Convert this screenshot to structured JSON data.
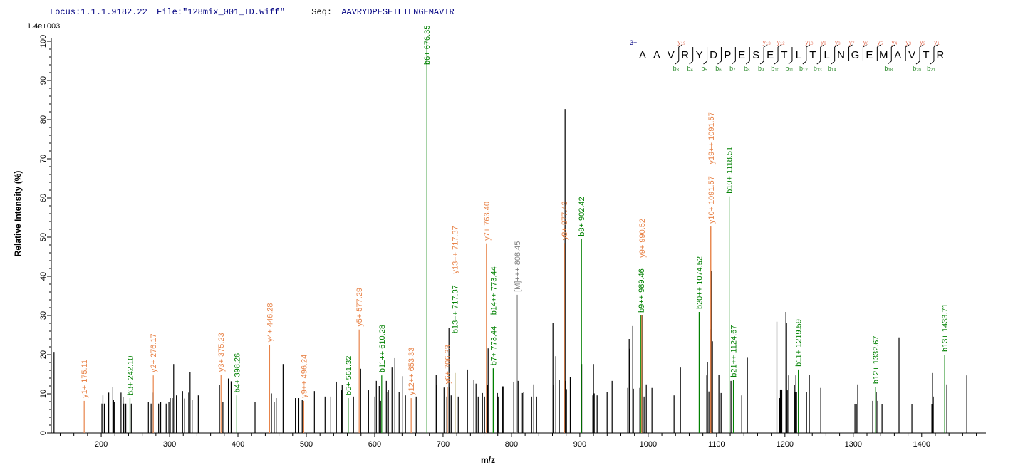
{
  "header": {
    "locus_label": "Locus:",
    "locus": "1.1.1.9182.22",
    "file_label": "File:",
    "file": "\"128mix_001_ID.wiff\"",
    "seq_label": "Seq:",
    "seq": "AAVRYDPESETLTLNGEMAVTR"
  },
  "colors": {
    "y": "#e8844a",
    "b": "#008000",
    "precursor": "#808080",
    "peak": "#000000",
    "header": "#000080"
  },
  "sequence_panel": {
    "charge": "3+",
    "residues": [
      "A",
      "A",
      "V",
      "R",
      "Y",
      "D",
      "P",
      "E",
      "S",
      "E",
      "T",
      "L",
      "T",
      "L",
      "N",
      "G",
      "E",
      "M",
      "A",
      "V",
      "T",
      "R"
    ],
    "b_ions": [
      3,
      4,
      5,
      6,
      7,
      8,
      9,
      10,
      11,
      12,
      13,
      14,
      18,
      20,
      21
    ],
    "y_ions": [
      19,
      13,
      12,
      10,
      9,
      8,
      7,
      6,
      5,
      4,
      3,
      2,
      1
    ]
  },
  "chart_data": {
    "type": "bar",
    "title": "",
    "xlabel": "m/z",
    "ylabel": "Relative   Intensity (%)",
    "y_scale_max_label": "1.4e+003",
    "xlim": [
      127,
      1494
    ],
    "ylim": [
      0,
      100
    ],
    "x_ticks": [
      200,
      300,
      400,
      500,
      600,
      700,
      800,
      900,
      1000,
      1100,
      1200,
      1300,
      1400
    ],
    "y_ticks": [
      0,
      10,
      20,
      30,
      40,
      50,
      60,
      70,
      80,
      90,
      100
    ],
    "grid": false,
    "peaks": [
      [
        131,
        20.7
      ],
      [
        201,
        7.5
      ],
      [
        202.5,
        9.6
      ],
      [
        204.6,
        7.5
      ],
      [
        211,
        10.3
      ],
      [
        217,
        11.8
      ],
      [
        218,
        8.5
      ],
      [
        219,
        7.9
      ],
      [
        229,
        10.3
      ],
      [
        232,
        9.2
      ],
      [
        233,
        7.5
      ],
      [
        236,
        7.5
      ],
      [
        244,
        7.5
      ],
      [
        269,
        7.9
      ],
      [
        273,
        7.5
      ],
      [
        276,
        10.3
      ],
      [
        284,
        7.5
      ],
      [
        287,
        7.9
      ],
      [
        295,
        7.5
      ],
      [
        299,
        7.9
      ],
      [
        301,
        8.9
      ],
      [
        304,
        8.9
      ],
      [
        306,
        17.6
      ],
      [
        310,
        9.6
      ],
      [
        319,
        10.7
      ],
      [
        322,
        8.8
      ],
      [
        328,
        10.3
      ],
      [
        330,
        15.6
      ],
      [
        333,
        8.5
      ],
      [
        342,
        9.6
      ],
      [
        373,
        12.2
      ],
      [
        378,
        7.9
      ],
      [
        386,
        13.9
      ],
      [
        390,
        13.2
      ],
      [
        391,
        10
      ],
      [
        425,
        7.9
      ],
      [
        449,
        10.1
      ],
      [
        453,
        7.9
      ],
      [
        456,
        8.9
      ],
      [
        466,
        17.6
      ],
      [
        484,
        8.9
      ],
      [
        489,
        8.9
      ],
      [
        494,
        8.5
      ],
      [
        511.8,
        10.7
      ],
      [
        527.4,
        9.3
      ],
      [
        535.8,
        9.3
      ],
      [
        544,
        13.1
      ],
      [
        551.4,
        10.9
      ],
      [
        552.4,
        12.2
      ],
      [
        569,
        9.3
      ],
      [
        579.5,
        16.4
      ],
      [
        591,
        10.9
      ],
      [
        600.3,
        9.3
      ],
      [
        602.4,
        13.3
      ],
      [
        606.6,
        12
      ],
      [
        608.6,
        8.2
      ],
      [
        617,
        13.3
      ],
      [
        619,
        10.5
      ],
      [
        620,
        10.9
      ],
      [
        625.3,
        16.7
      ],
      [
        629.5,
        19.1
      ],
      [
        635.7,
        10.5
      ],
      [
        641,
        14.5
      ],
      [
        645,
        9.6
      ],
      [
        660.7,
        9.3
      ],
      [
        689.9,
        14.9
      ],
      [
        690.9,
        12.2
      ],
      [
        701.4,
        11.6
      ],
      [
        705.5,
        9.3
      ],
      [
        708.6,
        26.9
      ],
      [
        709.7,
        11.6
      ],
      [
        711.8,
        9.6
      ],
      [
        722.2,
        9.3
      ],
      [
        735.7,
        16.2
      ],
      [
        745.1,
        13.5
      ],
      [
        748.2,
        12.6
      ],
      [
        751.4,
        9.3
      ],
      [
        757.6,
        10.2
      ],
      [
        760.7,
        9.3
      ],
      [
        764.9,
        12.2
      ],
      [
        765.9,
        21.6
      ],
      [
        779.5,
        10.2
      ],
      [
        780.5,
        9.3
      ],
      [
        786.8,
        11.9
      ],
      [
        787.8,
        11.9
      ],
      [
        803.4,
        13.1
      ],
      [
        809.7,
        13.3
      ],
      [
        816,
        10.2
      ],
      [
        818,
        10.5
      ],
      [
        829.5,
        9.3
      ],
      [
        832.6,
        12.4
      ],
      [
        836.8,
        9.3
      ],
      [
        860.7,
        28
      ],
      [
        861.8,
        12.2
      ],
      [
        864.9,
        19.6
      ],
      [
        870,
        13.6
      ],
      [
        878.4,
        82.7
      ],
      [
        879.5,
        13.3
      ],
      [
        880.5,
        11.2
      ],
      [
        886,
        14.2
      ],
      [
        902.8,
        17.6
      ],
      [
        919,
        9.6
      ],
      [
        920,
        17.6
      ],
      [
        921.1,
        10.1
      ],
      [
        925.3,
        9.6
      ],
      [
        939.9,
        10.5
      ],
      [
        947.2,
        13.3
      ],
      [
        970.1,
        11.5
      ],
      [
        972.2,
        24
      ],
      [
        973.2,
        21.5
      ],
      [
        977.4,
        27.3
      ],
      [
        978.4,
        11.3
      ],
      [
        987.8,
        11.5
      ],
      [
        992,
        30
      ],
      [
        994,
        9.3
      ],
      [
        997.2,
        12.4
      ],
      [
        1005.5,
        11.5
      ],
      [
        1037.8,
        9.6
      ],
      [
        1047.2,
        16.7
      ],
      [
        1085.7,
        14.7
      ],
      [
        1086.7,
        18.1
      ],
      [
        1088.8,
        10.6
      ],
      [
        1091,
        26.5
      ],
      [
        1093,
        41.3
      ],
      [
        1094,
        23.4
      ],
      [
        1103.4,
        14.9
      ],
      [
        1106.6,
        10.2
      ],
      [
        1121.1,
        13.3
      ],
      [
        1125.3,
        10.1
      ],
      [
        1136.8,
        9.6
      ],
      [
        1145.1,
        19.2
      ],
      [
        1188.2,
        28.4
      ],
      [
        1192.4,
        8.9
      ],
      [
        1193.4,
        11.1
      ],
      [
        1195.5,
        11.1
      ],
      [
        1201.4,
        30.9
      ],
      [
        1202.4,
        28
      ],
      [
        1203.5,
        10.9
      ],
      [
        1205.5,
        14.7
      ],
      [
        1213.9,
        12.2
      ],
      [
        1215,
        10.4
      ],
      [
        1216,
        14.7
      ],
      [
        1217,
        10.4
      ],
      [
        1220.1,
        13.6
      ],
      [
        1231.6,
        10.4
      ],
      [
        1235.7,
        14.9
      ],
      [
        1252.4,
        11.5
      ],
      [
        1302.4,
        7.4
      ],
      [
        1304.5,
        7.4
      ],
      [
        1306.5,
        12.4
      ],
      [
        1328.4,
        8.2
      ],
      [
        1333.6,
        10.4
      ],
      [
        1335.7,
        8.2
      ],
      [
        1342,
        7.4
      ],
      [
        1366.9,
        24.4
      ],
      [
        1385.7,
        7.4
      ],
      [
        1414.9,
        7.4
      ],
      [
        1415.9,
        15.3
      ],
      [
        1417,
        9.3
      ],
      [
        1436.8,
        12.4
      ],
      [
        1466,
        14.7
      ]
    ],
    "annotations": [
      {
        "label": "y1+ 175.11",
        "mz": 175.11,
        "intensity": 8.2,
        "type": "y"
      },
      {
        "label": "b3+ 242.10",
        "mz": 242.1,
        "intensity": 8.9,
        "type": "b"
      },
      {
        "label": "y2+ 276.17",
        "mz": 276.17,
        "intensity": 14.7,
        "type": "y"
      },
      {
        "label": "y3+ 375.23",
        "mz": 375.23,
        "intensity": 14.9,
        "type": "y"
      },
      {
        "label": "b4+ 398.26",
        "mz": 398.26,
        "intensity": 9.6,
        "type": "b"
      },
      {
        "label": "y4+ 446.28",
        "mz": 446.28,
        "intensity": 22.5,
        "type": "y"
      },
      {
        "label": "y9++ 496.24",
        "mz": 496.24,
        "intensity": 8.2,
        "type": "y"
      },
      {
        "label": "b5+ 561.32",
        "mz": 561.32,
        "intensity": 8.9,
        "type": "b"
      },
      {
        "label": "y5+ 577.29",
        "mz": 577.29,
        "intensity": 26.4,
        "type": "y"
      },
      {
        "label": "b11++ 610.28",
        "mz": 610.28,
        "intensity": 14.7,
        "type": "b"
      },
      {
        "label": "y12++ 653.33",
        "mz": 653.33,
        "intensity": 8.9,
        "type": "y"
      },
      {
        "label": "b6+ 676.35",
        "mz": 676.35,
        "intensity": 100,
        "type": "b"
      },
      {
        "label": "y6+ 706.33",
        "mz": 706.33,
        "intensity": 11.8,
        "type": "y"
      },
      {
        "label": "b13++ 717.37",
        "mz": 717.37,
        "intensity": 15.3,
        "type": "b"
      },
      {
        "label": "y13++ 717.37",
        "mz": 717.37,
        "intensity": 15.3,
        "type": "y"
      },
      {
        "label": "y7+ 763.40",
        "mz": 763.4,
        "intensity": 48.4,
        "type": "y"
      },
      {
        "label": "b7+ 773.44",
        "mz": 773.44,
        "intensity": 16.5,
        "type": "b"
      },
      {
        "label": "b14++ 773.44",
        "mz": 773.44,
        "intensity": 16.5,
        "type": "b"
      },
      {
        "label": "[M]+++ 808.45",
        "mz": 808.45,
        "intensity": 35.3,
        "type": "precursor"
      },
      {
        "label": "y8+ 877.43",
        "mz": 877.43,
        "intensity": 48.5,
        "type": "y"
      },
      {
        "label": "b8+ 902.42",
        "mz": 902.42,
        "intensity": 49.5,
        "type": "b"
      },
      {
        "label": "b9++ 989.46",
        "mz": 989.46,
        "intensity": 30,
        "type": "b"
      },
      {
        "label": "y9+ 990.52",
        "mz": 990.52,
        "intensity": 30,
        "type": "y"
      },
      {
        "label": "b20++ 1074.52",
        "mz": 1074.52,
        "intensity": 30.9,
        "type": "b"
      },
      {
        "label": "y10+ 1091.57",
        "mz": 1091.57,
        "intensity": 52.7,
        "type": "y"
      },
      {
        "label": "y19++ 1091.57",
        "mz": 1091.57,
        "intensity": 52.7,
        "type": "y"
      },
      {
        "label": "b10+ 1118.51",
        "mz": 1118.51,
        "intensity": 60.4,
        "type": "b"
      },
      {
        "label": "b21++ 1124.67",
        "mz": 1124.67,
        "intensity": 13.5,
        "type": "b"
      },
      {
        "label": "b11+ 1219.59",
        "mz": 1219.59,
        "intensity": 16.2,
        "type": "b"
      },
      {
        "label": "b12+ 1332.67",
        "mz": 1332.67,
        "intensity": 11.8,
        "type": "b"
      },
      {
        "label": "b13+ 1433.71",
        "mz": 1433.71,
        "intensity": 20,
        "type": "b"
      }
    ]
  }
}
